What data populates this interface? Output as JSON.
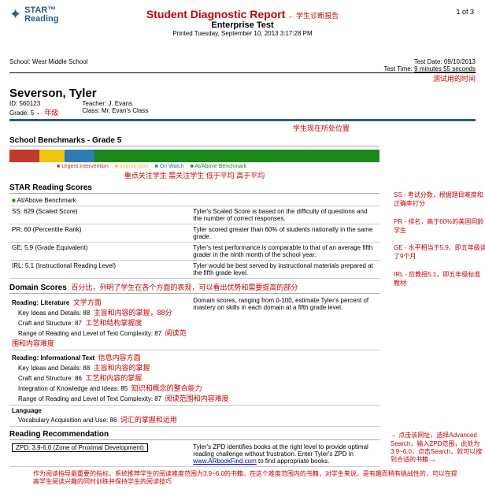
{
  "logo": {
    "brand_top": "STAR",
    "brand_bottom": "Reading",
    "tm": "™"
  },
  "header": {
    "title": "Student Diagnostic Report",
    "annot_title": "学生诊断报告",
    "subtitle": "Enterprise Test",
    "printed": "Printed Tuesday, September 10, 2013 3:17:28 PM",
    "page_num": "1 of 3"
  },
  "school_row": {
    "school_label": "School:",
    "school": "West Middle School",
    "test_date_label": "Test Date:",
    "test_date": "09/10/2013",
    "test_time_label": "Test Time:",
    "test_time": "9 minutes 55 seconds",
    "time_annot": "测试用的时间"
  },
  "student": {
    "name": "Severson, Tyler",
    "id_label": "ID:",
    "id": "560123",
    "grade_label": "Grade:",
    "grade": "5",
    "grade_annot": "年级",
    "teacher_label": "Teacher:",
    "teacher": "J. Evans",
    "class_label": "Class:",
    "class": "Mr. Evan's Class",
    "pos_annot": "学生现在所处位置"
  },
  "benchmark": {
    "title": "School Benchmarks - Grade 5",
    "segments": [
      {
        "color": "#c0392b",
        "pct": 8
      },
      {
        "color": "#f1c40f",
        "pct": 7
      },
      {
        "color": "#2e7bb6",
        "pct": 8
      },
      {
        "color": "#1a8a1a",
        "pct": 77
      }
    ],
    "legend": {
      "urgent": "Urgent Intervention",
      "urgent_color": "#c0392b",
      "intervention": "Intervention",
      "intervention_color": "#f1c40f",
      "onwatch": "On Watch",
      "onwatch_color": "#2e7bb6",
      "above": "At/Above Benchmark",
      "above_color": "#1a8a1a"
    },
    "annot": "重点关注学生  需关注学生  低于平均  高于平均"
  },
  "scores": {
    "title": "STAR Reading Scores",
    "above_label": "At/Above Benchmark",
    "rows": [
      {
        "l": "SS: 629 (Scaled Score)",
        "r": "Tyler's Scaled Score is based on the difficulty of questions and the number of correct responses."
      },
      {
        "l": "PR: 60 (Percentile Rank)",
        "r": "Tyler scored greater than 60% of students nationally in the same grade."
      },
      {
        "l": "GE: 5.9 (Grade Equivalent)",
        "r": "Tyler's test performance is comparable to that of an average fifth grader in the ninth month of the school year."
      },
      {
        "l": "IRL: 5.1 (Instructional Reading Level)",
        "r": "Tyler would be best served by instructional materials prepared at the fifth grade level."
      }
    ]
  },
  "side_notes": {
    "ss": "SS - 考试分数，根据题目难度和正确率打分",
    "pr": "PR - 排名，高于60%的美国同龄学生",
    "ge": "GE - 水平相当于5.9，即五年级读了9个月",
    "irl": "IRL - 应教授5.1，即五年级标准教材"
  },
  "domain": {
    "title": "Domain Scores",
    "title_annot": "百分比，列明了学生在各个方面的表现，可以看出优势和需要提高的部分",
    "rhead": "Domain scores, ranging from 0-100, estimate Tyler's percent of mastery on skills in each domain at a fifth grade level.",
    "lit": {
      "h": "Reading: Literature",
      "ha": "文学方面",
      "k": "Key Ideas and Details: 88",
      "ka": "主旨和内容的掌握，88分",
      "c": "Craft and Structure: 87",
      "ca": "工艺和结构掌握度",
      "r": "Range of Reading and Level of Text Complexity: 87",
      "ra": "阅读范围和内容难度"
    },
    "info": {
      "h": "Reading: Informational Text",
      "ha": "信息内容方面",
      "k": "Key Ideas and Details: 88",
      "ka": "主旨和内容的掌握",
      "c": "Craft and Structure: 86",
      "ca": "工艺和内容的掌握",
      "i": "Integration of Knowledge and Ideas: 85",
      "ia": "知识和概念的整合能力",
      "r": "Range of Reading and Level of Text Complexity: 87",
      "ra": "阅读范围和内容难度"
    },
    "lang": {
      "h": "Language",
      "v": "Vocabulary Acquisition and Use: 86",
      "va": "词汇的掌握和运用"
    }
  },
  "rec": {
    "title": "Reading Recommendation",
    "zpd": "ZPD: 3.9-6.0 (Zone of Proximal Development)",
    "zpd_text_1": "Tyler's ZPD identifies books at the right level to provide optimal reading challenge without frustration. Enter Tyler's ZPD in ",
    "zpd_link": "www.ARbookFind.com",
    "zpd_text_2": " to find appropriate books.",
    "side": "点击该网址，选择Advanced Search，输入ZPD范围，此处为3.9~6.0，点击Search，就可以搜到合适的书籍"
  },
  "footer_annot": "作为阅读指导最重要的指标，系统推荐学生的阅读难度范围为3.9~6.0的书籍。在这个难度范围内的书籍，对学生来说，是有趣而稍有挑战性的，可以在提高学生阅读兴趣的同时训练并保持学生的阅读技巧"
}
